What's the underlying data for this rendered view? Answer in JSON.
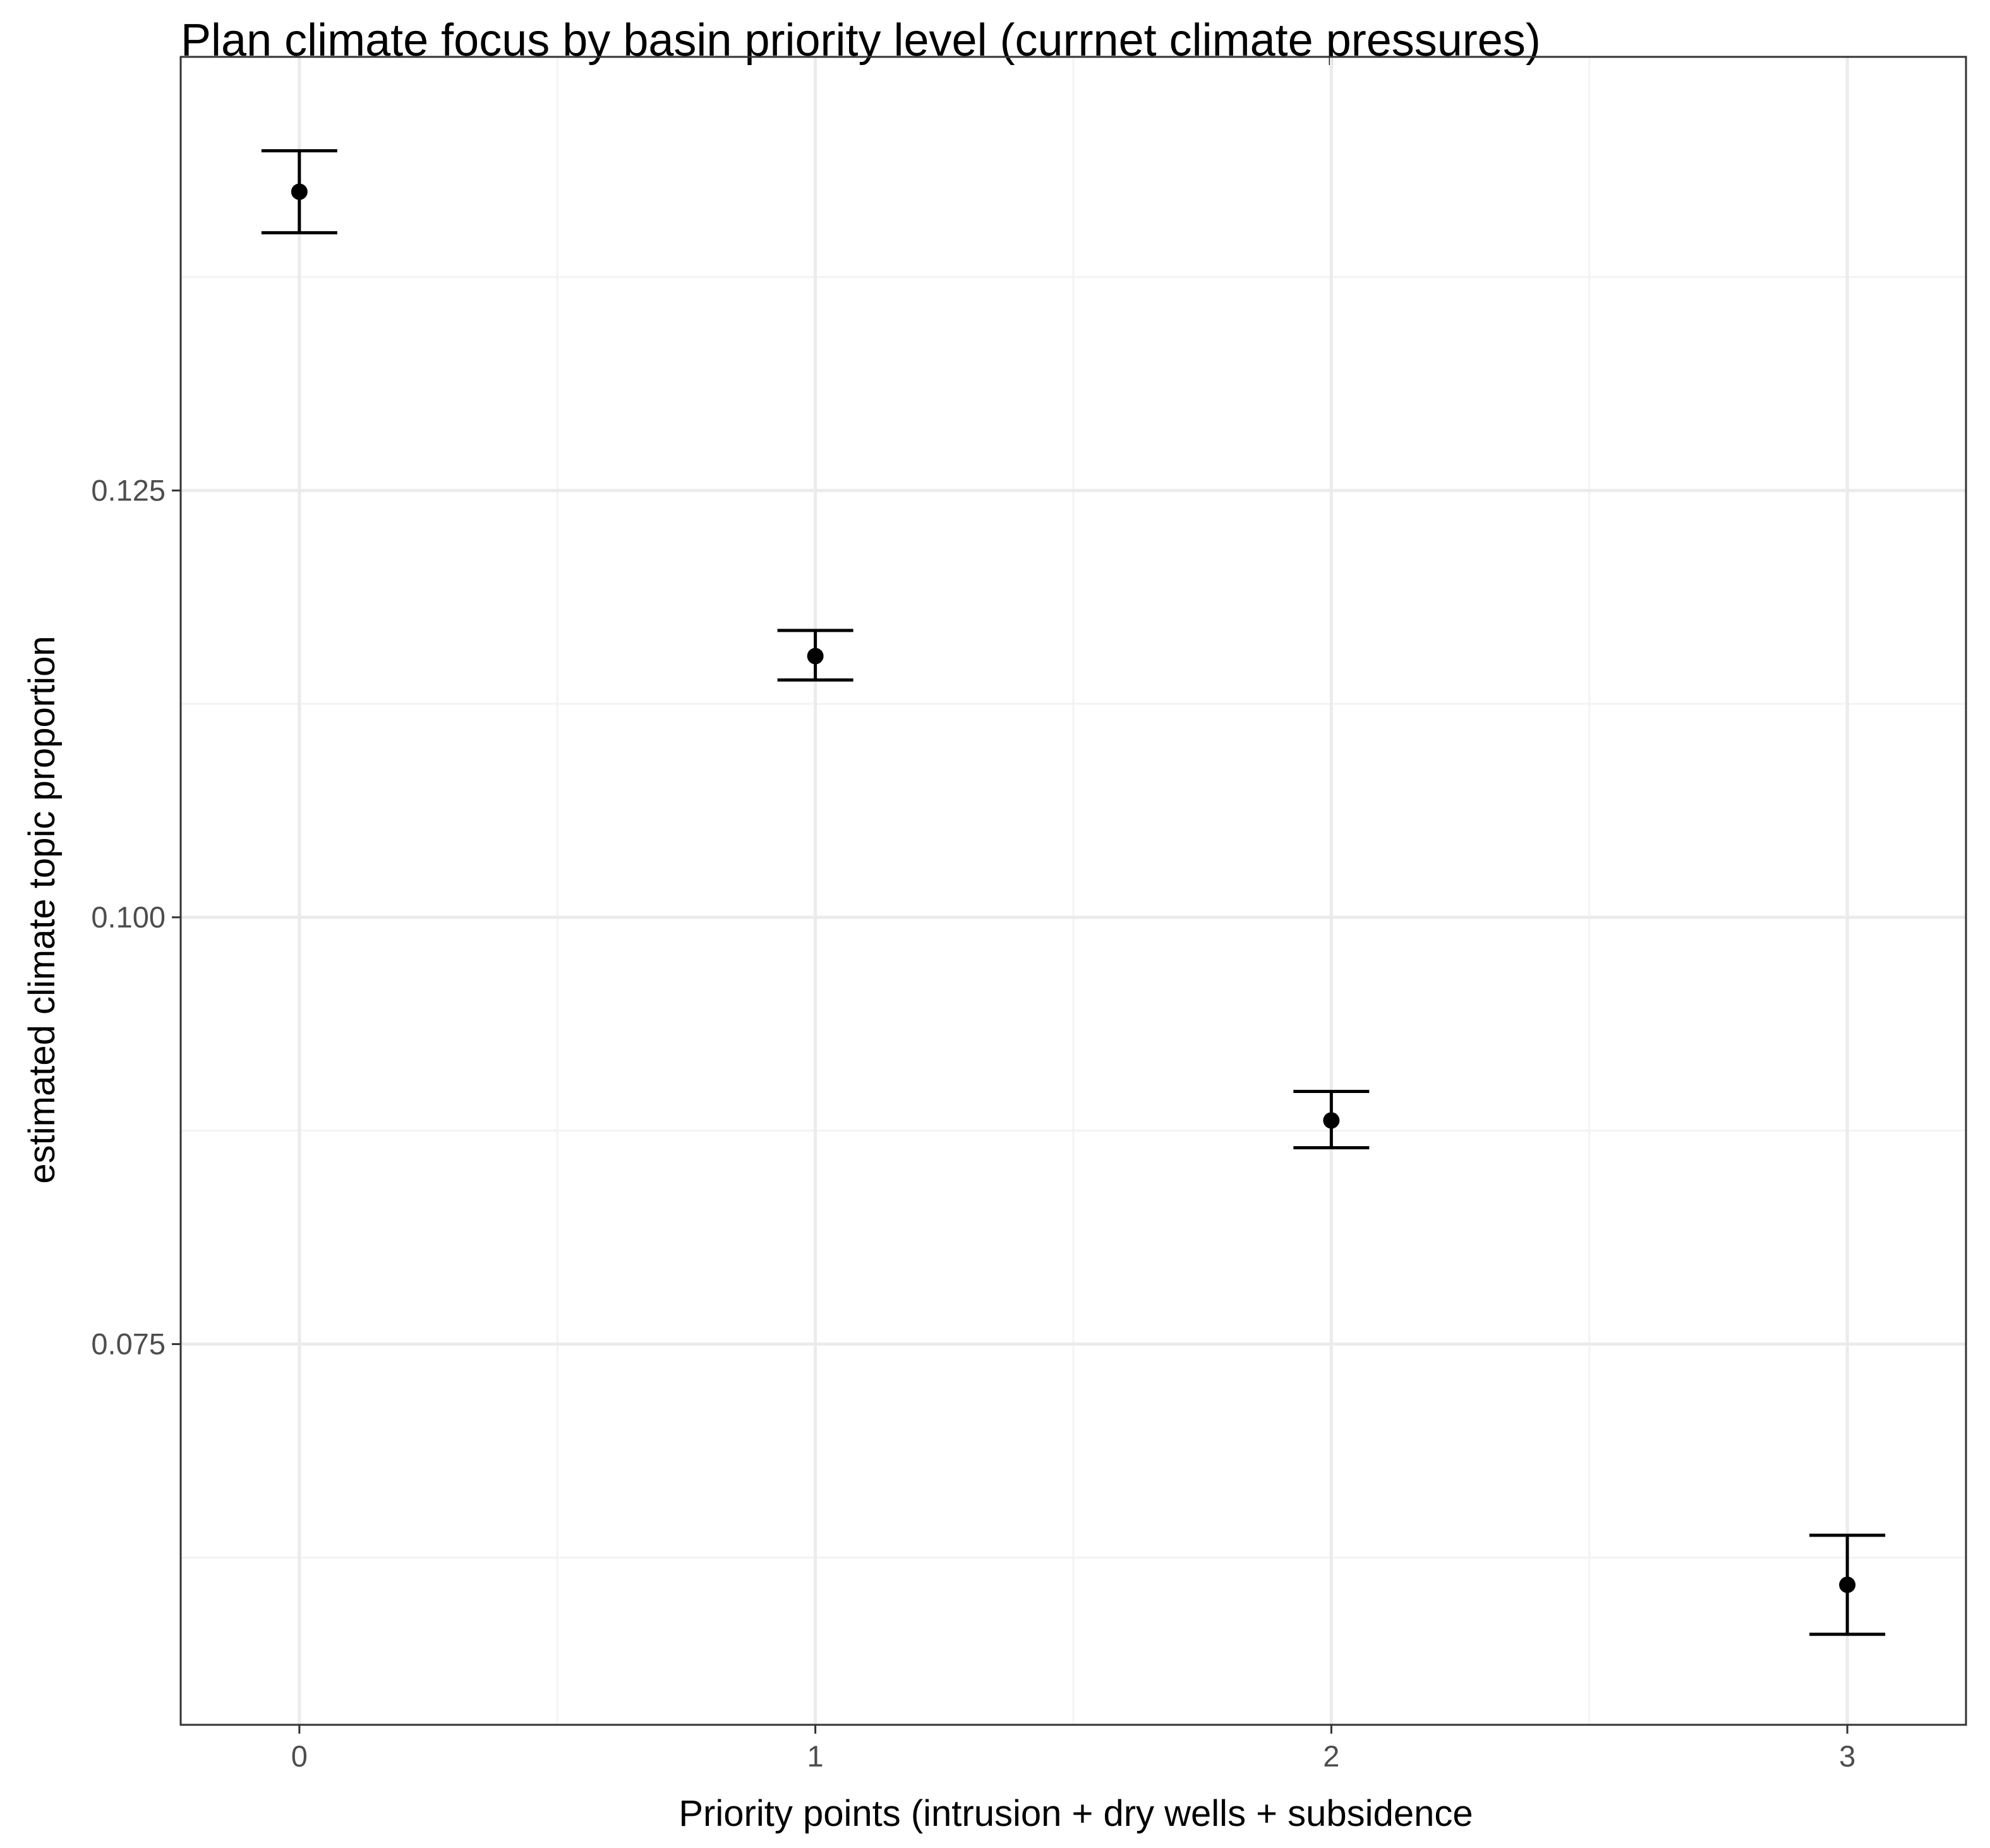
{
  "chart_data": {
    "type": "scatter",
    "title": "Plan climate focus by basin priority level (currnet climate pressures)",
    "xlabel": "Priority points (intrusion + dry wells + subsidence",
    "ylabel": "estimated climate topic proportion",
    "x_ticks": [
      "0",
      "1",
      "2",
      "3"
    ],
    "y_ticks": [
      "0.075",
      "0.100",
      "0.125"
    ],
    "y_tick_values": [
      0.075,
      0.1,
      0.125
    ],
    "xlim": [
      -0.23,
      3.23
    ],
    "ylim": [
      0.0527,
      0.1504
    ],
    "grid": true,
    "legend": "none",
    "series": [
      {
        "points": [
          {
            "x": 0,
            "y": 0.1425,
            "ymin": 0.1401,
            "ymax": 0.1449
          },
          {
            "x": 1,
            "y": 0.1153,
            "ymin": 0.1139,
            "ymax": 0.1168
          },
          {
            "x": 2,
            "y": 0.0881,
            "ymin": 0.0865,
            "ymax": 0.0898
          },
          {
            "x": 3,
            "y": 0.0609,
            "ymin": 0.058,
            "ymax": 0.0638
          }
        ]
      }
    ],
    "colors": {
      "point": "#000000",
      "errorbar": "#000000",
      "grid_major": "#ebebeb",
      "grid_minor": "#f3f3f3",
      "panel_border": "#333333",
      "tick_label": "#4d4d4d"
    }
  }
}
